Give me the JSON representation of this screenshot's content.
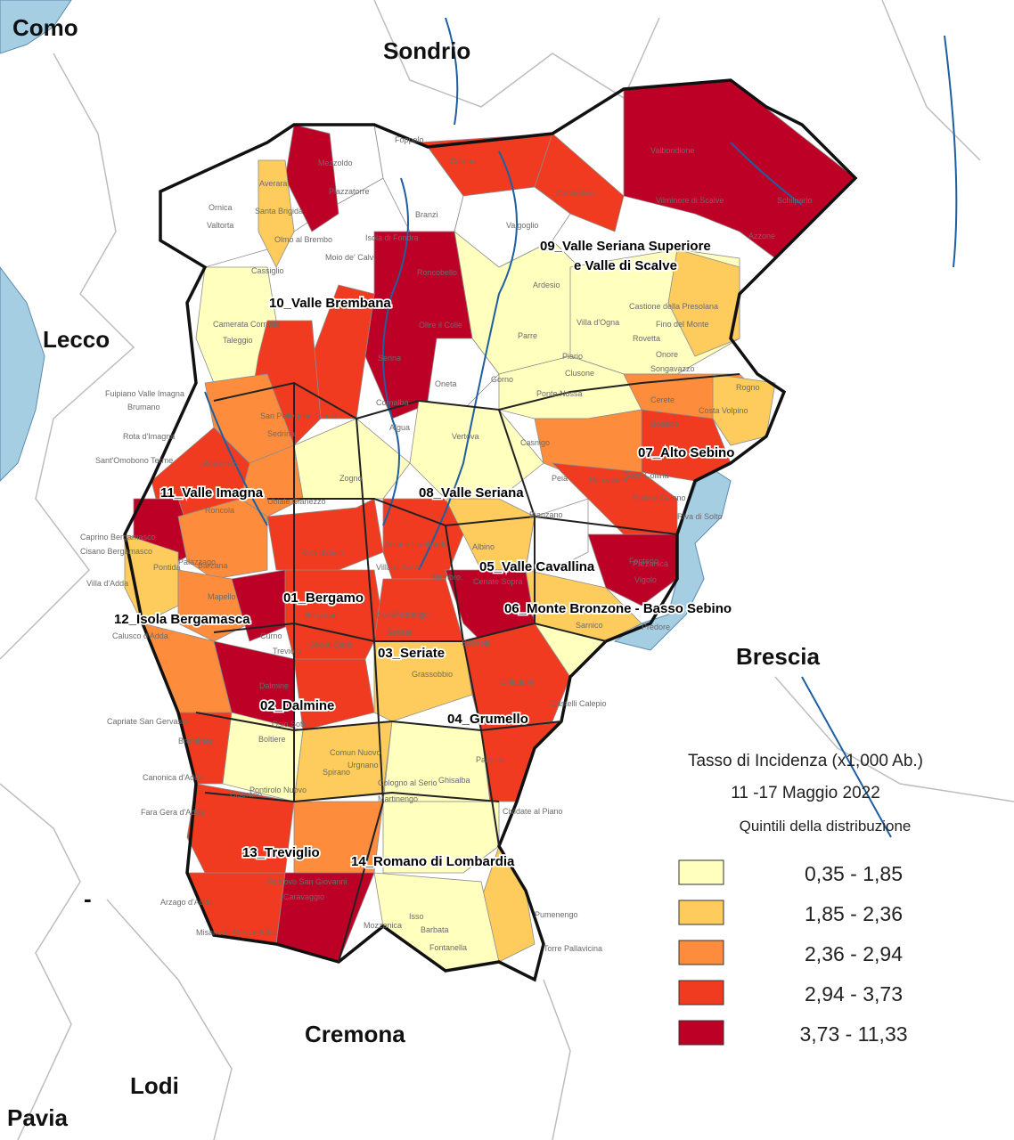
{
  "map": {
    "neighbors": [
      {
        "id": "como",
        "name": "Como"
      },
      {
        "id": "sondrio",
        "name": "Sondrio"
      },
      {
        "id": "lecco",
        "name": "Lecco"
      },
      {
        "id": "brescia",
        "name": "Brescia"
      },
      {
        "id": "cremona",
        "name": "Cremona"
      },
      {
        "id": "lodi",
        "name": "Lodi"
      },
      {
        "id": "pavia",
        "name": "Pavia"
      },
      {
        "id": "dash",
        "name": "-"
      }
    ],
    "districts": [
      {
        "id": "d01",
        "name": "01_Bergamo"
      },
      {
        "id": "d02",
        "name": "02_Dalmine"
      },
      {
        "id": "d03",
        "name": "03_Seriate"
      },
      {
        "id": "d04",
        "name": "04_Grumello"
      },
      {
        "id": "d05",
        "name": "05_Valle Cavallina"
      },
      {
        "id": "d06",
        "name": "06_Monte Bronzone - Basso Sebino"
      },
      {
        "id": "d07",
        "name": "07_Alto Sebino"
      },
      {
        "id": "d08",
        "name": "08_Valle Seriana"
      },
      {
        "id": "d09a",
        "name": "09_Valle Seriana Superiore"
      },
      {
        "id": "d09b",
        "name": "e Valle di Scalve"
      },
      {
        "id": "d10",
        "name": "10_Valle Brembana"
      },
      {
        "id": "d11",
        "name": "11_Valle Imagna"
      },
      {
        "id": "d12",
        "name": "12_Isola Bergamasca"
      },
      {
        "id": "d13",
        "name": "13_Treviglio"
      },
      {
        "id": "d14",
        "name": "14_Romano di Lombardia"
      }
    ],
    "towns": [
      "Foppolo",
      "Carona",
      "Valbondione",
      "Schilpario",
      "Vilminore di Scalve",
      "Azzone",
      "Gandellino",
      "Valgoglio",
      "Mezzoldo",
      "Averara",
      "Santa Brigida",
      "Ornica",
      "Valtorta",
      "Piazzatorre",
      "Branzi",
      "Isola di Fondra",
      "Olmo al Brembo",
      "Cassiglio",
      "Moio de' Calvi",
      "Roncobello",
      "Ardesio",
      "Oltre il Colle",
      "Camerata Cornello",
      "Taleggio",
      "Gorno",
      "Parre",
      "Castione della Presolana",
      "Fino del Monte",
      "Rovetta",
      "Villa d'Ogna",
      "Piario",
      "Clusone",
      "Onore",
      "Songavazzo",
      "Cerete",
      "Rogno",
      "Costa Volpino",
      "Bossico",
      "Serina",
      "Oneta",
      "Ponte Nossa",
      "Cornalba",
      "Fuipiano Valle Imagna",
      "Brumano",
      "Rota d'Imagna",
      "Berbenno",
      "San Pellegrino Terme",
      "Sedrina",
      "Zogno",
      "Algua",
      "Vertova",
      "Casnigo",
      "Peia",
      "Ranzanico",
      "Endine Gaiano",
      "Sant'Omobono Terme",
      "Roncola",
      "Ubiale Clanezzo",
      "Nembro",
      "Albino",
      "Bianzano",
      "Solto Collina",
      "Riva di Solto",
      "Fonteno",
      "Alzano Lombardo",
      "Villa d'Almè",
      "Caprino Bergamasco",
      "Cisano Bergamasco",
      "Palazzago",
      "Pontida",
      "Barzana",
      "Villa di Serio",
      "Casazza",
      "Parzanica",
      "Vigolo",
      "Villa d'Adda",
      "Mapello",
      "Cenate Sopra",
      "Bergamo",
      "Gorle",
      "Pedrengo",
      "Predore",
      "Sarnico",
      "Calusco d'Adda",
      "Curno",
      "Treviolo",
      "Orio al Serio",
      "Seriate",
      "Sorisole",
      "Chiuduno",
      "Dalmine",
      "Grassobbio",
      "Castelli Calepio",
      "Capriate San Gervasio",
      "Osio Sotto",
      "Boltiere",
      "Brembate",
      "Comun Nuovo",
      "Urgnano",
      "Ghisalba",
      "Palosco",
      "Canonica d'Adda",
      "Ciserano",
      "Spirano",
      "Pontirolo Nuovo",
      "Cologno al Serio",
      "Martinengo",
      "Fara Gera d'Adda",
      "Cividate al Piano",
      "Arzago d'Adda",
      "Fornovo San Giovanni",
      "Caravaggio",
      "Pumenengo",
      "Misano di Gera d'Adda",
      "Mozzanica",
      "Isso",
      "Barbata",
      "Fontanella",
      "Torre Pallavicina"
    ]
  },
  "legend": {
    "title": "Tasso di Incidenza (x1,000 Ab.)",
    "period": "11 -17 Maggio 2022",
    "subtitle": "Quintili della distribuzione",
    "classes": [
      {
        "label": "0,35 - 1,85",
        "color": "#ffffbe"
      },
      {
        "label": "1,85 - 2,36",
        "color": "#fecc5c"
      },
      {
        "label": "2,36 - 2,94",
        "color": "#fd8d3c"
      },
      {
        "label": "2,94 - 3,73",
        "color": "#f03b20"
      },
      {
        "label": "3,73 - 11,33",
        "color": "#bd0026"
      }
    ]
  },
  "colors": {
    "water": "#a6cee3",
    "river": "#1f5fa0",
    "boundary": "#1a1a1a",
    "municipal_line": "#8c8c8c",
    "no_data": "#ffffff"
  }
}
